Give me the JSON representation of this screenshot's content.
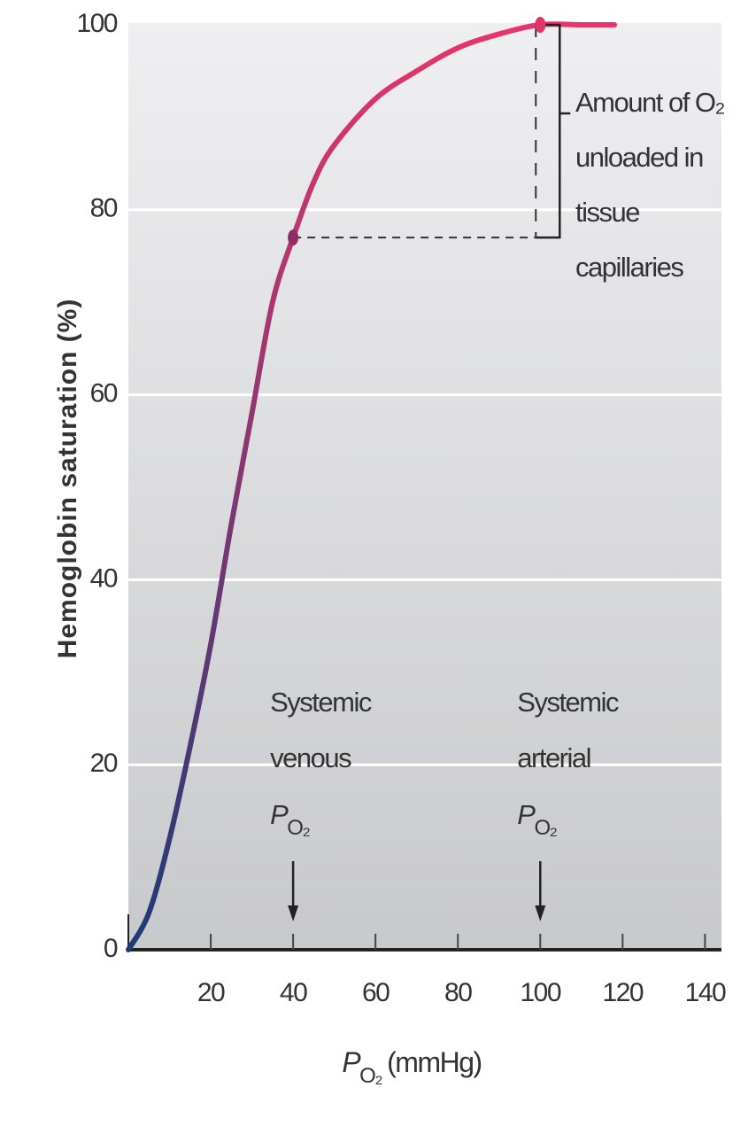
{
  "chart_data": {
    "type": "line",
    "y_label": "Hemoglobin saturation (%)",
    "x_label": {
      "symbol": "P",
      "subscript": "O₂",
      "unit": "(mmHg)"
    },
    "x": [
      0,
      5,
      10,
      15,
      20,
      25,
      30,
      35,
      40,
      45,
      50,
      60,
      70,
      80,
      90,
      100,
      110,
      118
    ],
    "series": [
      {
        "gradient": [
          "#1d3a78",
          "#e8346b"
        ],
        "values": [
          0,
          4,
          12,
          22,
          33,
          46,
          58,
          70,
          77,
          83,
          87,
          92,
          95,
          97.5,
          99,
          100,
          100,
          100
        ]
      }
    ],
    "points": [
      {
        "x": 40,
        "y": 77,
        "color": "#8e2f63"
      },
      {
        "x": 100,
        "y": 100,
        "color": "#e2336a"
      }
    ],
    "xlim": [
      0,
      144
    ],
    "ylim": [
      0,
      100
    ],
    "xticks": [
      20,
      40,
      60,
      80,
      100,
      120,
      140
    ],
    "yticks": [
      0,
      20,
      40,
      60,
      80,
      100
    ],
    "grid": true,
    "bracket_label": [
      "Amount of O₂",
      "unloaded in",
      "tissue",
      "capillaries"
    ],
    "venous_label": {
      "lines": [
        "Systemic",
        "venous"
      ],
      "symbol": "P",
      "subscript": "O₂"
    },
    "arterial_label": {
      "lines": [
        "Systemic",
        "arterial"
      ],
      "symbol": "P",
      "subscript": "O₂"
    }
  }
}
